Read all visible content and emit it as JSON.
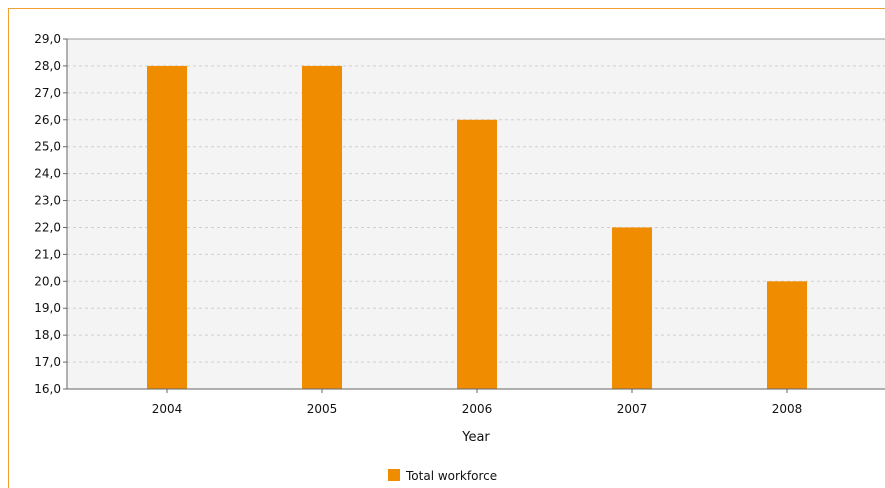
{
  "chart_data": {
    "type": "bar",
    "categories": [
      "2004",
      "2005",
      "2006",
      "2007",
      "2008"
    ],
    "series": [
      {
        "name": "Total workforce",
        "values": [
          28.0,
          28.0,
          26.0,
          22.0,
          20.0
        ],
        "color": "#f08c00"
      }
    ],
    "title": "",
    "xlabel": "Year",
    "ylabel": "",
    "ylim": [
      16.0,
      29.0
    ],
    "yticks": [
      "16,0",
      "17,0",
      "18,0",
      "19,0",
      "20,0",
      "21,0",
      "22,0",
      "23,0",
      "24,0",
      "25,0",
      "26,0",
      "27,0",
      "28,0",
      "29,0"
    ],
    "grid": true,
    "legend_position": "bottom-center"
  }
}
